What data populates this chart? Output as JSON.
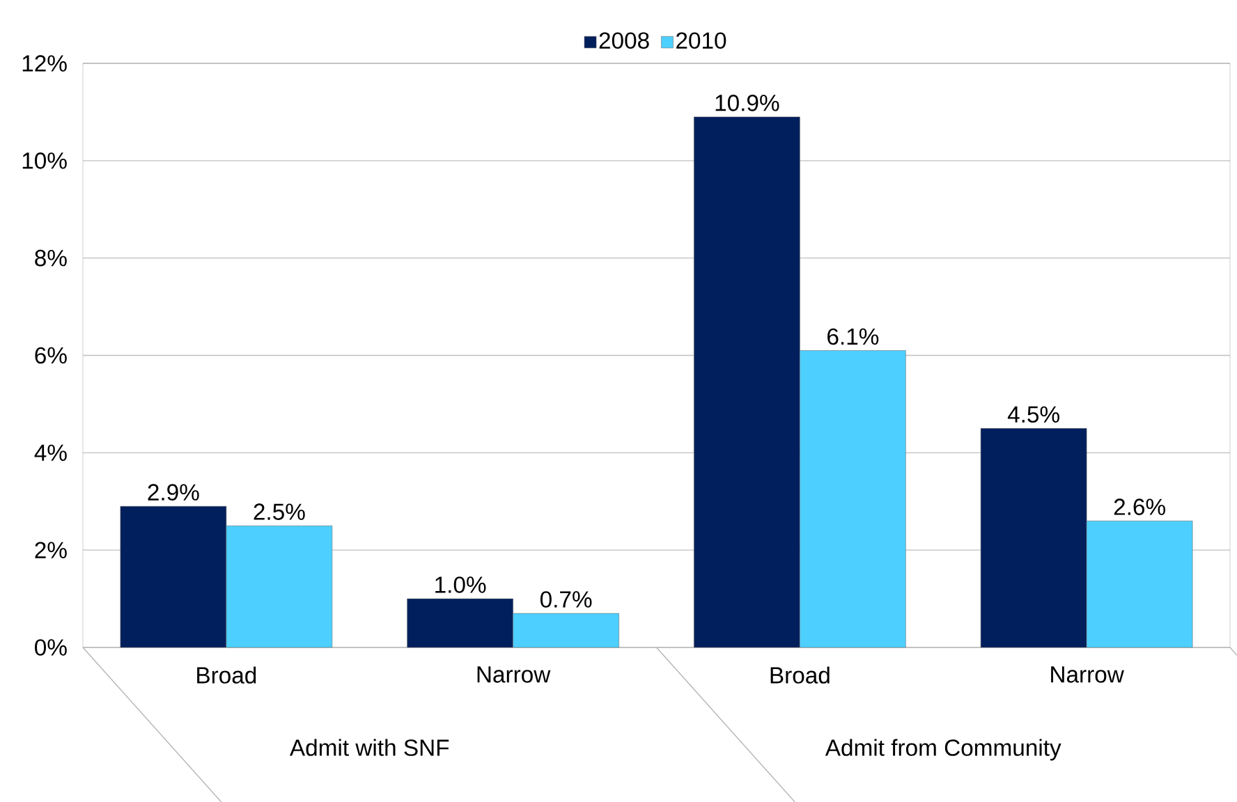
{
  "chart_data": {
    "type": "bar",
    "categories": [
      "Broad",
      "Narrow",
      "Broad",
      "Narrow"
    ],
    "series": [
      {
        "name": "2008",
        "color": "#001f5c",
        "values": [
          2.9,
          1.0,
          10.9,
          4.5
        ],
        "value_labels": [
          "2.9%",
          "1.0%",
          "10.9%",
          "4.5%"
        ]
      },
      {
        "name": "2010",
        "color": "#4dcfff",
        "values": [
          2.5,
          0.7,
          6.1,
          2.6
        ],
        "value_labels": [
          "2.5%",
          "0.7%",
          "6.1%",
          "2.6%"
        ]
      }
    ],
    "annotations": [
      "Admit with SNF",
      "Admit from Community"
    ],
    "ylim": [
      0,
      12
    ],
    "yticks": [
      {
        "value": 0,
        "label": "0%"
      },
      {
        "value": 2,
        "label": "2%"
      },
      {
        "value": 4,
        "label": "4%"
      },
      {
        "value": 6,
        "label": "6%"
      },
      {
        "value": 8,
        "label": "8%"
      },
      {
        "value": 10,
        "label": "10%"
      },
      {
        "value": 12,
        "label": "12%"
      }
    ],
    "grid": "y",
    "legend": "top"
  }
}
